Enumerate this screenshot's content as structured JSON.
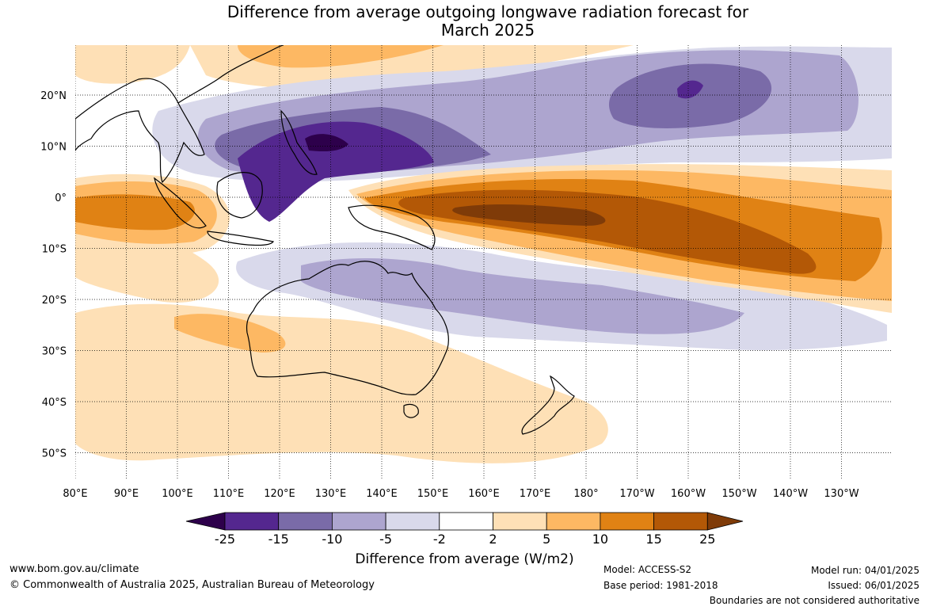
{
  "title_line1": "Difference from average outgoing longwave radiation forecast for",
  "title_line2": "March 2025",
  "lat_ticks": [
    {
      "lat": 20,
      "label": "20°N"
    },
    {
      "lat": 10,
      "label": "10°N"
    },
    {
      "lat": 0,
      "label": "0°"
    },
    {
      "lat": -10,
      "label": "10°S"
    },
    {
      "lat": -20,
      "label": "20°S"
    },
    {
      "lat": -30,
      "label": "30°S"
    },
    {
      "lat": -40,
      "label": "40°S"
    },
    {
      "lat": -50,
      "label": "50°S"
    }
  ],
  "lon_ticks": [
    {
      "lon": 80,
      "label": "80°E"
    },
    {
      "lon": 90,
      "label": "90°E"
    },
    {
      "lon": 100,
      "label": "100°E"
    },
    {
      "lon": 110,
      "label": "110°E"
    },
    {
      "lon": 120,
      "label": "120°E"
    },
    {
      "lon": 130,
      "label": "130°E"
    },
    {
      "lon": 140,
      "label": "140°E"
    },
    {
      "lon": 150,
      "label": "150°E"
    },
    {
      "lon": 160,
      "label": "160°E"
    },
    {
      "lon": 170,
      "label": "170°E"
    },
    {
      "lon": 180,
      "label": "180°"
    },
    {
      "lon": 190,
      "label": "170°W"
    },
    {
      "lon": 200,
      "label": "160°W"
    },
    {
      "lon": 210,
      "label": "150°W"
    },
    {
      "lon": 220,
      "label": "140°W"
    },
    {
      "lon": 230,
      "label": "130°W"
    }
  ],
  "colorbar": {
    "labels": [
      "-25",
      "-15",
      "-10",
      "-5",
      "-2",
      "2",
      "5",
      "10",
      "15",
      "25"
    ],
    "colors": [
      "#54278f",
      "#7a6ba8",
      "#ada5cf",
      "#d9d9eb",
      "#ffffff",
      "#fee0b6",
      "#fdb863",
      "#e08214",
      "#b35806",
      "#7f3b08"
    ],
    "low_color": "#2d004b",
    "high_color": "#7f3b08",
    "title": "Difference from average (W/m2)"
  },
  "footer": {
    "website": "www.bom.gov.au/climate",
    "copyright": "© Commonwealth of Australia 2025, Australian Bureau of Meteorology",
    "model": "Model: ACCESS-S2",
    "base_period": "Base period: 1981-2018",
    "model_run": "Model run: 04/01/2025",
    "issued": "Issued: 06/01/2025",
    "disclaimer": "Boundaries are not considered authoritative"
  }
}
